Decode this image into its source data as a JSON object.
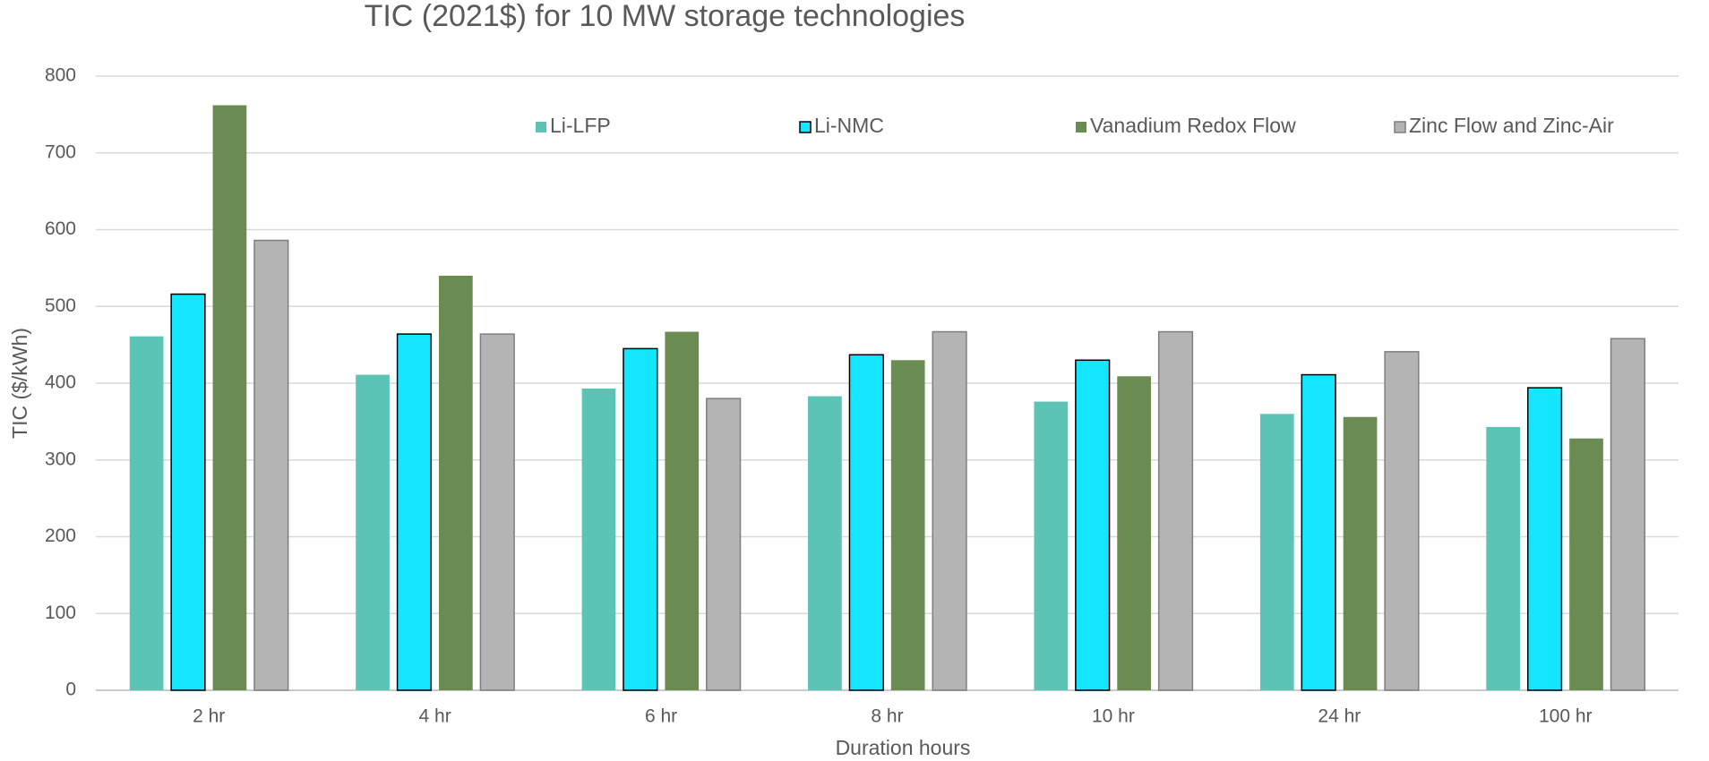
{
  "chart_data": {
    "type": "bar",
    "title": "TIC (2021$) for 10 MW storage technologies",
    "ylabel": "TIC  ($/kWh)",
    "xlabel": "Duration  hours",
    "categories": [
      "2 hr",
      "4 hr",
      "6 hr",
      "8 hr",
      "10 hr",
      "24 hr",
      "100 hr"
    ],
    "series": [
      {
        "name": "Li-LFP",
        "color": "#5bc4b4",
        "values": [
          461,
          411,
          393,
          383,
          376,
          360,
          343
        ]
      },
      {
        "name": "Li-NMC",
        "color": "#14e6ff",
        "edgecolor": "#000000",
        "values": [
          516,
          464,
          445,
          437,
          430,
          411,
          394
        ]
      },
      {
        "name": "Vanadium Redox Flow",
        "color": "#6a8c52",
        "values": [
          762,
          540,
          467,
          430,
          409,
          356,
          328
        ]
      },
      {
        "name": "Zinc Flow and Zinc-Air",
        "color": "#b4b4b4",
        "edgecolor": "#7f7f7f",
        "values": [
          586,
          464,
          380,
          467,
          467,
          441,
          458
        ]
      }
    ],
    "ylim": [
      0,
      800
    ],
    "yticks": [
      0,
      100,
      200,
      300,
      400,
      500,
      600,
      700,
      800
    ],
    "grid": true,
    "legend": "top"
  }
}
